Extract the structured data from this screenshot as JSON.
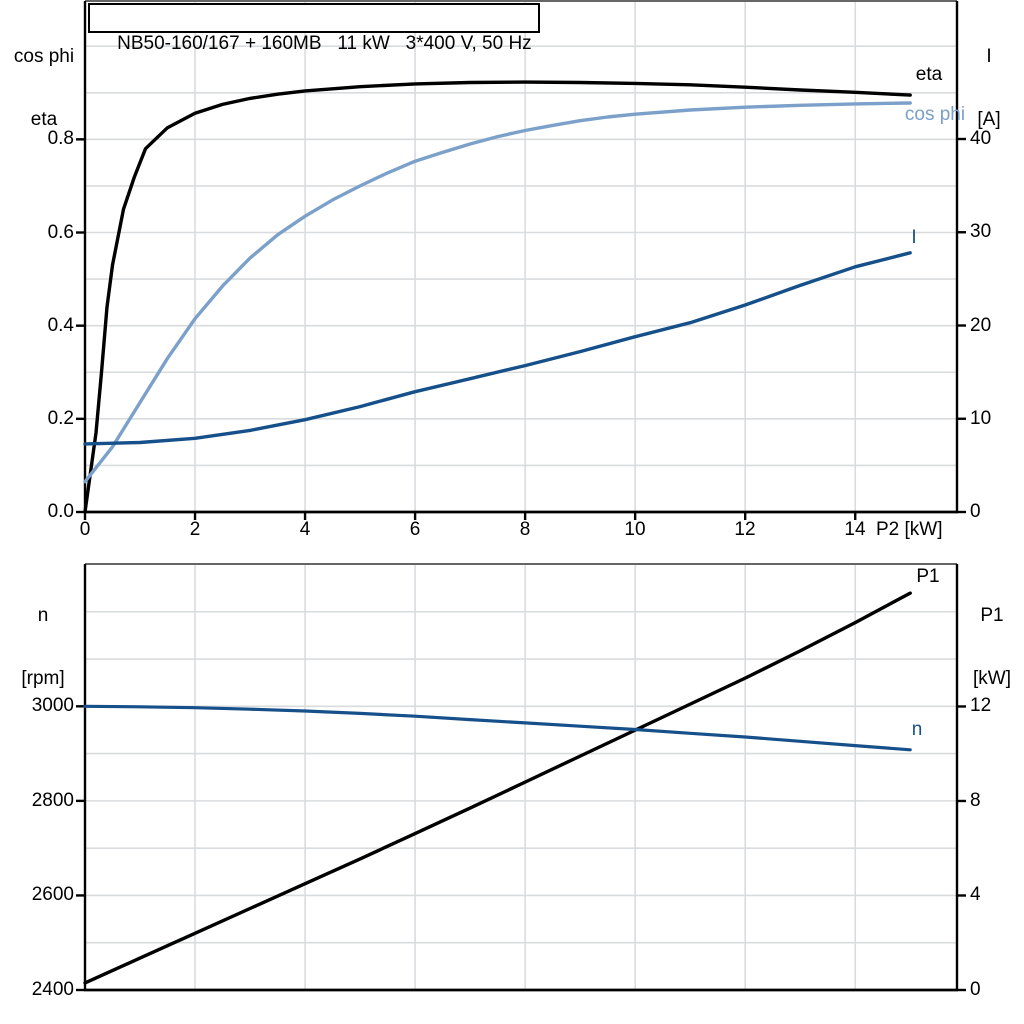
{
  "title": "NB50-160/167 + 160MB   11 kW   3*400 V, 50 Hz",
  "colors": {
    "black": "#000000",
    "light_blue": "#7ba0c9",
    "dark_blue": "#16508a",
    "grid": "#d9dcde",
    "frame_top": "#666666",
    "axis": "#000000"
  },
  "chart_data": [
    {
      "type": "line",
      "name": "motor-electrical-chart",
      "left_axis": {
        "header": [
          "cos phi",
          "eta"
        ],
        "tick_labels": [
          "0.0",
          "0.2",
          "0.4",
          "0.6",
          "0.8"
        ],
        "tick_values": [
          0.0,
          0.2,
          0.4,
          0.6,
          0.8
        ],
        "range": [
          0,
          1.097
        ],
        "grid_step": 0.1
      },
      "right_axis": {
        "header": [
          "I",
          "[A]"
        ],
        "tick_labels": [
          "0",
          "10",
          "20",
          "30",
          "40"
        ],
        "tick_values": [
          0,
          10,
          20,
          30,
          40
        ],
        "range": [
          0,
          54.8
        ]
      },
      "x_axis": {
        "label": "P2 [kW]",
        "tick_labels": [
          "0",
          "2",
          "4",
          "6",
          "8",
          "10",
          "12",
          "14"
        ],
        "tick_values": [
          0,
          2,
          4,
          6,
          8,
          10,
          12,
          14
        ],
        "range": [
          0,
          15.85
        ],
        "grid_step": 2,
        "show_tick_labels": true
      },
      "series": [
        {
          "name": "eta",
          "axis": "left",
          "color": "black",
          "width": 3.4,
          "x": [
            0,
            0.2,
            0.3,
            0.4,
            0.5,
            0.7,
            0.9,
            1.1,
            1.5,
            2,
            2.5,
            3,
            3.5,
            4,
            5,
            6,
            7,
            8,
            9,
            10,
            11,
            12,
            13,
            14,
            15
          ],
          "y": [
            0,
            0.17,
            0.3,
            0.44,
            0.53,
            0.65,
            0.72,
            0.78,
            0.825,
            0.856,
            0.875,
            0.888,
            0.897,
            0.904,
            0.913,
            0.919,
            0.922,
            0.923,
            0.922,
            0.92,
            0.917,
            0.912,
            0.906,
            0.901,
            0.895
          ],
          "label": {
            "text": "eta",
            "x": 15.35,
            "y": 0.938,
            "anchor": "middle"
          }
        },
        {
          "name": "cos phi",
          "axis": "left",
          "color": "light_blue",
          "width": 3.4,
          "x": [
            0,
            0.5,
            1,
            1.5,
            2,
            2.5,
            3,
            3.5,
            4,
            4.5,
            5,
            5.5,
            6,
            6.5,
            7,
            7.5,
            8,
            8.5,
            9,
            9.5,
            10,
            11,
            12,
            13,
            14,
            15
          ],
          "y": [
            0.065,
            0.14,
            0.235,
            0.33,
            0.415,
            0.485,
            0.545,
            0.595,
            0.635,
            0.67,
            0.7,
            0.728,
            0.753,
            0.772,
            0.79,
            0.806,
            0.819,
            0.83,
            0.84,
            0.848,
            0.854,
            0.863,
            0.869,
            0.873,
            0.876,
            0.878
          ],
          "label": {
            "text": "cos phi",
            "x": 15.45,
            "y": 0.852,
            "anchor": "middle"
          }
        },
        {
          "name": "I",
          "axis": "right",
          "color": "dark_blue",
          "width": 3.4,
          "x": [
            0,
            1,
            2,
            3,
            4,
            5,
            6,
            7,
            8,
            9,
            10,
            11,
            12,
            13,
            14,
            15
          ],
          "y": [
            7.3,
            7.45,
            7.9,
            8.75,
            9.9,
            11.3,
            12.9,
            14.3,
            15.7,
            17.2,
            18.8,
            20.3,
            22.2,
            24.3,
            26.3,
            27.8
          ],
          "label": {
            "text": "I",
            "x": 15.06,
            "y": 29.4,
            "anchor": "middle"
          }
        }
      ]
    },
    {
      "type": "line",
      "name": "speed-power-chart",
      "left_axis": {
        "header": [
          "n",
          "[rpm]"
        ],
        "tick_labels": [
          "2400",
          "2600",
          "2800",
          "3000"
        ],
        "tick_values": [
          2400,
          2600,
          2800,
          3000
        ],
        "range": [
          2400,
          3301
        ],
        "grid_step": 100
      },
      "right_axis": {
        "header": [
          "P1",
          "[kW]"
        ],
        "tick_labels": [
          "0",
          "4",
          "8",
          "12"
        ],
        "tick_values": [
          0,
          4,
          8,
          12
        ],
        "range": [
          0,
          18.03
        ]
      },
      "x_axis": {
        "label": "",
        "tick_labels": [],
        "tick_values": [],
        "range": [
          0,
          15.85
        ],
        "grid_step": 2,
        "show_tick_labels": false
      },
      "series": [
        {
          "name": "P1",
          "axis": "right",
          "color": "black",
          "width": 3.4,
          "x": [
            0,
            1,
            2,
            3,
            4,
            5,
            6,
            7,
            8,
            9,
            10,
            11,
            12,
            13,
            14,
            15
          ],
          "y": [
            0.3,
            1.35,
            2.4,
            3.45,
            4.5,
            5.55,
            6.62,
            7.7,
            8.8,
            9.9,
            11.0,
            12.1,
            13.2,
            14.35,
            15.55,
            16.8
          ],
          "label": {
            "text": "P1",
            "x": 15.33,
            "y": 17.5,
            "anchor": "middle"
          }
        },
        {
          "name": "n",
          "axis": "left",
          "color": "dark_blue",
          "width": 3.2,
          "x": [
            0,
            1,
            2,
            3,
            4,
            5,
            6,
            7,
            8,
            9,
            10,
            11,
            12,
            13,
            14,
            15
          ],
          "y": [
            3000,
            2999,
            2997,
            2994,
            2990,
            2985,
            2979,
            2972,
            2965,
            2958,
            2951,
            2943,
            2935,
            2926,
            2917,
            2908
          ],
          "label": {
            "text": "n",
            "x": 15.13,
            "y": 2950,
            "anchor": "middle"
          }
        }
      ]
    }
  ]
}
